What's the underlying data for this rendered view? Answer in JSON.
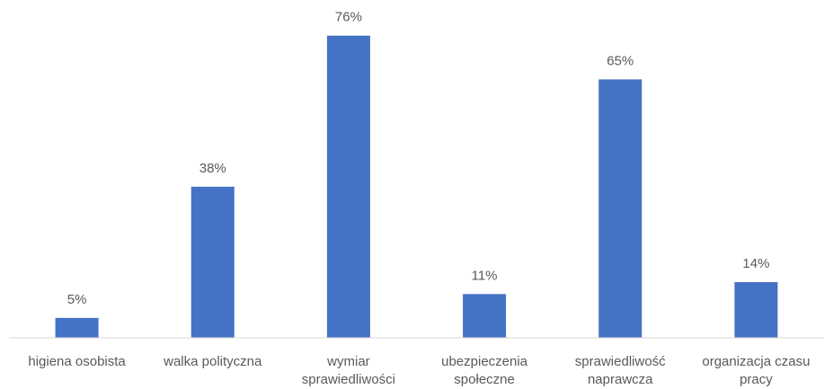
{
  "chart_data": {
    "type": "bar",
    "categories": [
      "higiena osobista",
      "walka polityczna",
      "wymiar sprawiedliwości",
      "ubezpieczenia społeczne",
      "sprawiedliwość naprawcza",
      "organizacja czasu pracy"
    ],
    "values": [
      5,
      38,
      76,
      11,
      65,
      14
    ],
    "value_labels": [
      "5%",
      "38%",
      "76%",
      "11%",
      "65%",
      "14%"
    ],
    "color": "#4472c4",
    "ylim": [
      0,
      80
    ]
  }
}
